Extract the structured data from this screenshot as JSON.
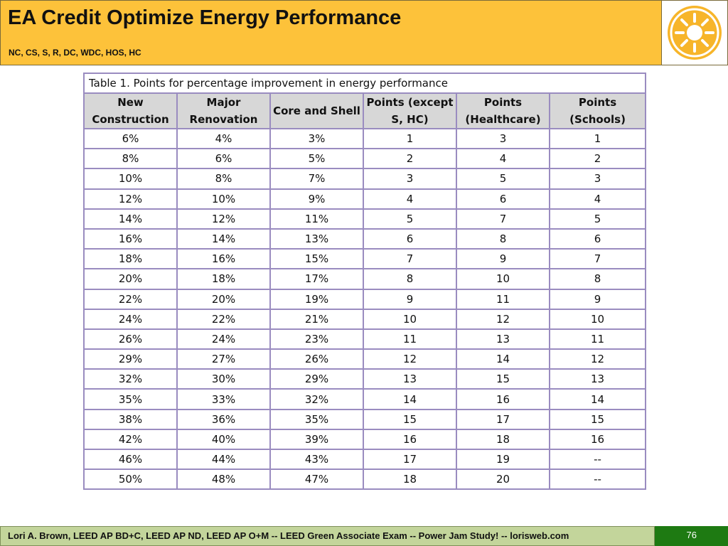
{
  "header": {
    "title": "EA Credit Optimize Energy Performance",
    "subtitle": "NC, CS, S, R, DC, WDC, HOS, HC",
    "logo_icon": "sun-logo-icon",
    "accent_color": "#fdc23a"
  },
  "table": {
    "caption": "Table 1. Points for percentage improvement in energy performance",
    "columns": [
      "New Construction",
      "Major Renovation",
      "Core and Shell",
      "Points (except S, HC)",
      "Points (Healthcare)",
      "Points (Schools)"
    ],
    "rows": [
      [
        "6%",
        "4%",
        "3%",
        "1",
        "3",
        "1"
      ],
      [
        "8%",
        "6%",
        "5%",
        "2",
        "4",
        "2"
      ],
      [
        "10%",
        "8%",
        "7%",
        "3",
        "5",
        "3"
      ],
      [
        "12%",
        "10%",
        "9%",
        "4",
        "6",
        "4"
      ],
      [
        "14%",
        "12%",
        "11%",
        "5",
        "7",
        "5"
      ],
      [
        "16%",
        "14%",
        "13%",
        "6",
        "8",
        "6"
      ],
      [
        "18%",
        "16%",
        "15%",
        "7",
        "9",
        "7"
      ],
      [
        "20%",
        "18%",
        "17%",
        "8",
        "10",
        "8"
      ],
      [
        "22%",
        "20%",
        "19%",
        "9",
        "11",
        "9"
      ],
      [
        "24%",
        "22%",
        "21%",
        "10",
        "12",
        "10"
      ],
      [
        "26%",
        "24%",
        "23%",
        "11",
        "13",
        "11"
      ],
      [
        "29%",
        "27%",
        "26%",
        "12",
        "14",
        "12"
      ],
      [
        "32%",
        "30%",
        "29%",
        "13",
        "15",
        "13"
      ],
      [
        "35%",
        "33%",
        "32%",
        "14",
        "16",
        "14"
      ],
      [
        "38%",
        "36%",
        "35%",
        "15",
        "17",
        "15"
      ],
      [
        "42%",
        "40%",
        "39%",
        "16",
        "18",
        "16"
      ],
      [
        "46%",
        "44%",
        "43%",
        "17",
        "19",
        "--"
      ],
      [
        "50%",
        "48%",
        "47%",
        "18",
        "20",
        "--"
      ]
    ]
  },
  "footer": {
    "text": "Lori A. Brown, LEED AP BD+C, LEED AP ND, LEED AP O+M -- LEED Green Associate Exam -- Power Jam Study! -- lorisweb.com",
    "page_number": "76",
    "left_color": "#c3d59b",
    "right_color": "#1e7a12"
  }
}
